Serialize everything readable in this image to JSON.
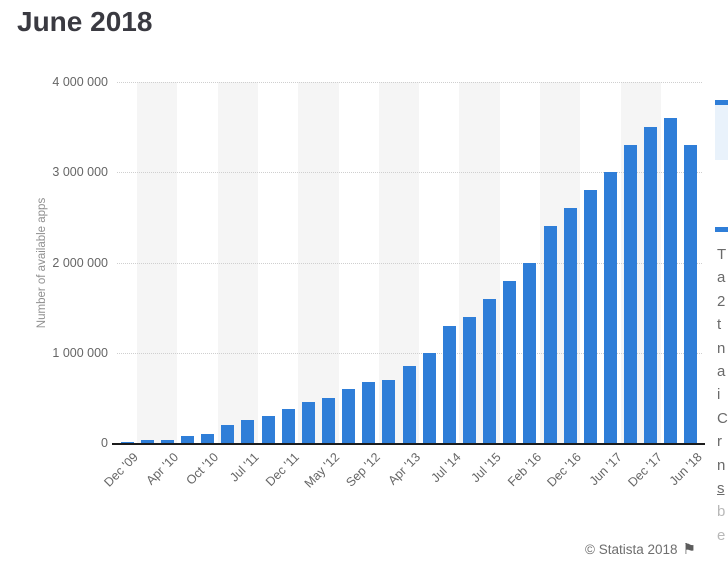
{
  "page": {
    "title": "June 2018",
    "footer": {
      "copyright": "© Statista 2018",
      "flag_icon": "⚑"
    }
  },
  "chart_data": {
    "type": "bar",
    "title": "June 2018",
    "xlabel": "",
    "ylabel": "Number of available apps",
    "ylim": [
      0,
      4000000
    ],
    "grid": "horizontal-dotted",
    "legend": "none",
    "y_tick_labels": [
      "4 000 000",
      "3 000 000",
      "2 000 000",
      "1 000 000",
      "0"
    ],
    "x_tick_labels": [
      "Dec '09",
      "Apr '10",
      "Oct '10",
      "Jul '11",
      "Dec '11",
      "May '12",
      "Sep '12",
      "Apr '13",
      "Jul '14",
      "Jul '15",
      "Feb '16",
      "Dec '16",
      "Jun '17",
      "Dec '17",
      "Jun '18"
    ],
    "x_ticks_on_every_other_bar": true,
    "values": [
      16000,
      30000,
      38000,
      80000,
      100000,
      200000,
      250000,
      300000,
      380000,
      450000,
      500000,
      600000,
      675000,
      700000,
      850000,
      1000000,
      1300000,
      1400000,
      1600000,
      1800000,
      2000000,
      2400000,
      2600000,
      2800000,
      3000000,
      3300000,
      3500000,
      3600000,
      3300000
    ],
    "bar_color": "#2f7ed8",
    "plot_band_color": "#f5f5f5",
    "gridline_color": "#cfcfcf",
    "axis_text_color": "#666666"
  },
  "right_panel": {
    "text_line_fragments": [
      "T",
      "a",
      "2",
      "t",
      "n",
      "a",
      "i",
      "C",
      "r",
      "n",
      "s",
      "b",
      "e"
    ],
    "underlined_line_index": 10,
    "faded_line_indices": [
      11,
      12
    ],
    "accent_color": "#2f7ed8"
  }
}
